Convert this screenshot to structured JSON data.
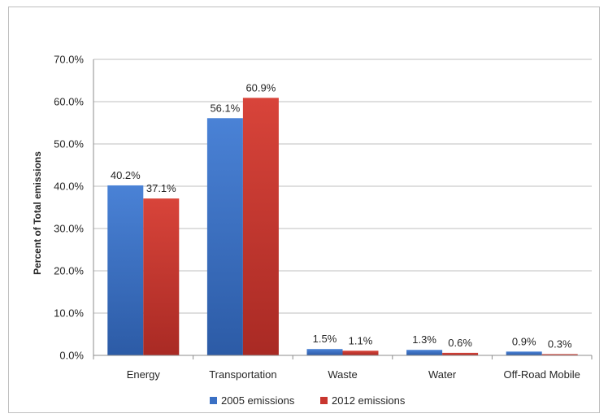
{
  "chart_data": {
    "type": "bar",
    "title": "",
    "xlabel": "",
    "ylabel": "Percent of Total emissions",
    "ylim": [
      0,
      70
    ],
    "ytick_step": 10,
    "ytick_suffix": "%",
    "grid": true,
    "legend_position": "bottom",
    "categories": [
      "Energy",
      "Transportation",
      "Waste",
      "Water",
      "Off-Road Mobile"
    ],
    "series": [
      {
        "name": "2005 emissions",
        "color": "#3a70c4",
        "values": [
          40.2,
          56.1,
          1.5,
          1.3,
          0.9
        ],
        "labels": [
          "40.2%",
          "56.1%",
          "1.5%",
          "1.3%",
          "0.9%"
        ]
      },
      {
        "name": "2012 emissions",
        "color": "#c8362f",
        "values": [
          37.1,
          60.9,
          1.1,
          0.6,
          0.3
        ],
        "labels": [
          "37.1%",
          "60.9%",
          "1.1%",
          "0.6%",
          "0.3%"
        ]
      }
    ]
  }
}
